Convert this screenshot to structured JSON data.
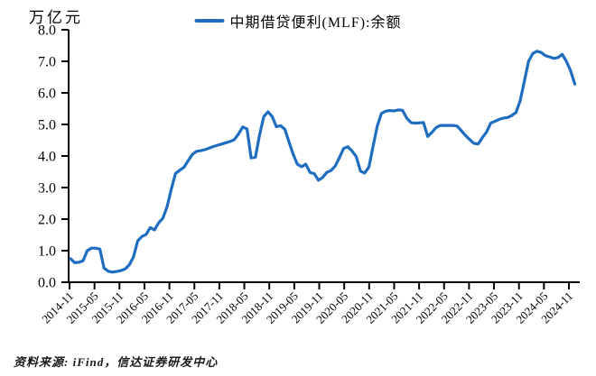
{
  "header": {
    "unit_label": "万亿元",
    "legend": {
      "label": "中期借贷便利(MLF):余额",
      "line_color": "#1f6dc1"
    }
  },
  "footer": {
    "source": "资料来源: iFind，信达证券研发中心"
  },
  "chart_data": {
    "type": "line",
    "title": "",
    "ylabel_unit": "万亿元",
    "grid": false,
    "legend_position": "top-center",
    "y_axis": {
      "min": 0,
      "max": 8,
      "tick_step": 1,
      "tick_labels": [
        "0.0",
        "1.0",
        "2.0",
        "3.0",
        "4.0",
        "5.0",
        "6.0",
        "7.0",
        "8.0"
      ]
    },
    "x_axis": {
      "tick_labels": [
        "2014-11",
        "2015-05",
        "2015-11",
        "2016-05",
        "2016-11",
        "2017-05",
        "2017-11",
        "2018-05",
        "2018-11",
        "2019-05",
        "2019-11",
        "2020-05",
        "2020-11",
        "2021-05",
        "2021-11",
        "2022-05",
        "2022-11",
        "2023-05",
        "2023-11",
        "2024-05",
        "2024-11"
      ],
      "label_rotation_deg": -45
    },
    "series": [
      {
        "name": "中期借贷便利(MLF):余额",
        "color": "#1f6dc1",
        "frequency": "monthly",
        "start_month": "2014-11",
        "end_month": "2024-11",
        "values": [
          0.75,
          0.62,
          0.63,
          0.68,
          1.0,
          1.08,
          1.08,
          1.05,
          0.45,
          0.35,
          0.32,
          0.34,
          0.37,
          0.42,
          0.55,
          0.8,
          1.31,
          1.45,
          1.51,
          1.73,
          1.66,
          1.88,
          2.03,
          2.4,
          2.95,
          3.45,
          3.55,
          3.64,
          3.85,
          4.05,
          4.15,
          4.17,
          4.2,
          4.25,
          4.3,
          4.34,
          4.38,
          4.42,
          4.46,
          4.52,
          4.7,
          4.92,
          4.86,
          3.94,
          3.96,
          4.66,
          5.25,
          5.4,
          5.25,
          4.93,
          4.96,
          4.85,
          4.45,
          4.05,
          3.74,
          3.66,
          3.74,
          3.48,
          3.44,
          3.23,
          3.32,
          3.48,
          3.54,
          3.68,
          3.95,
          4.24,
          4.29,
          4.16,
          3.98,
          3.52,
          3.46,
          3.65,
          4.3,
          4.95,
          5.35,
          5.42,
          5.44,
          5.43,
          5.46,
          5.45,
          5.2,
          5.06,
          5.04,
          5.05,
          5.06,
          4.62,
          4.75,
          4.9,
          4.97,
          4.97,
          4.97,
          4.97,
          4.95,
          4.8,
          4.65,
          4.52,
          4.4,
          4.38,
          4.58,
          4.76,
          5.04,
          5.1,
          5.16,
          5.2,
          5.22,
          5.28,
          5.38,
          5.75,
          6.37,
          7.0,
          7.25,
          7.32,
          7.28,
          7.18,
          7.14,
          7.09,
          7.12,
          7.22,
          7.0,
          6.7,
          6.28
        ]
      }
    ]
  }
}
